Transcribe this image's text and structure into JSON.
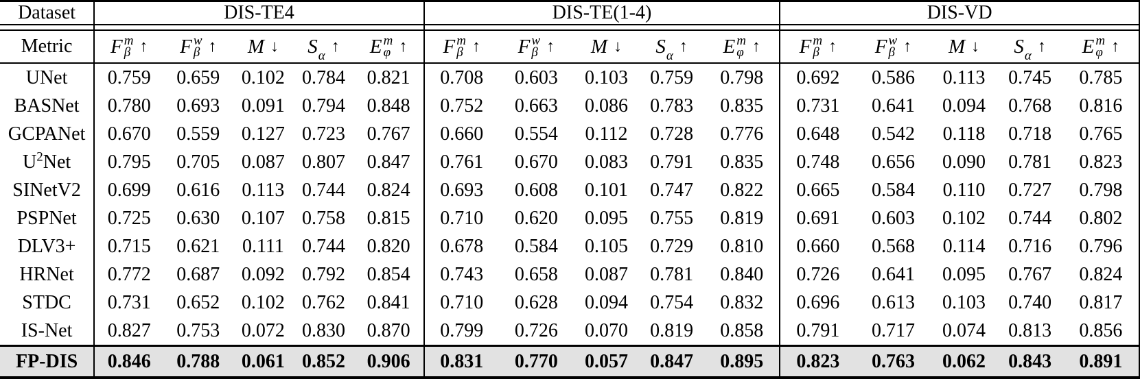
{
  "table": {
    "corner_header": "Dataset",
    "metric_header": "Metric",
    "highlight_color": "#e2e2e2",
    "text_color": "#000000",
    "sections": [
      {
        "label": "DIS-TE4",
        "key": "te4"
      },
      {
        "label": "DIS-TE(1-4)",
        "key": "te14"
      },
      {
        "label": "DIS-VD",
        "key": "vd"
      }
    ],
    "metrics": [
      {
        "base": "F",
        "sup": "m",
        "sub": "β",
        "arrow": "↑"
      },
      {
        "base": "F",
        "sup": "w",
        "sub": "β",
        "arrow": "↑"
      },
      {
        "base": "M",
        "sup": "",
        "sub": "",
        "arrow": "↓"
      },
      {
        "base": "S",
        "sup": "",
        "sub": "α",
        "arrow": "↑"
      },
      {
        "base": "E",
        "sup": "m",
        "sub": "φ",
        "arrow": "↑"
      }
    ],
    "rows": [
      {
        "method_pre": "UNet",
        "method_sup": "",
        "method_post": "",
        "highlight": false,
        "te4": [
          "0.759",
          "0.659",
          "0.102",
          "0.784",
          "0.821"
        ],
        "te14": [
          "0.708",
          "0.603",
          "0.103",
          "0.759",
          "0.798"
        ],
        "vd": [
          "0.692",
          "0.586",
          "0.113",
          "0.745",
          "0.785"
        ]
      },
      {
        "method_pre": "BASNet",
        "method_sup": "",
        "method_post": "",
        "highlight": false,
        "te4": [
          "0.780",
          "0.693",
          "0.091",
          "0.794",
          "0.848"
        ],
        "te14": [
          "0.752",
          "0.663",
          "0.086",
          "0.783",
          "0.835"
        ],
        "vd": [
          "0.731",
          "0.641",
          "0.094",
          "0.768",
          "0.816"
        ]
      },
      {
        "method_pre": "GCPANet",
        "method_sup": "",
        "method_post": "",
        "highlight": false,
        "te4": [
          "0.670",
          "0.559",
          "0.127",
          "0.723",
          "0.767"
        ],
        "te14": [
          "0.660",
          "0.554",
          "0.112",
          "0.728",
          "0.776"
        ],
        "vd": [
          "0.648",
          "0.542",
          "0.118",
          "0.718",
          "0.765"
        ]
      },
      {
        "method_pre": "U",
        "method_sup": "2",
        "method_post": "Net",
        "highlight": false,
        "te4": [
          "0.795",
          "0.705",
          "0.087",
          "0.807",
          "0.847"
        ],
        "te14": [
          "0.761",
          "0.670",
          "0.083",
          "0.791",
          "0.835"
        ],
        "vd": [
          "0.748",
          "0.656",
          "0.090",
          "0.781",
          "0.823"
        ]
      },
      {
        "method_pre": "SINetV2",
        "method_sup": "",
        "method_post": "",
        "highlight": false,
        "te4": [
          "0.699",
          "0.616",
          "0.113",
          "0.744",
          "0.824"
        ],
        "te14": [
          "0.693",
          "0.608",
          "0.101",
          "0.747",
          "0.822"
        ],
        "vd": [
          "0.665",
          "0.584",
          "0.110",
          "0.727",
          "0.798"
        ]
      },
      {
        "method_pre": "PSPNet",
        "method_sup": "",
        "method_post": "",
        "highlight": false,
        "te4": [
          "0.725",
          "0.630",
          "0.107",
          "0.758",
          "0.815"
        ],
        "te14": [
          "0.710",
          "0.620",
          "0.095",
          "0.755",
          "0.819"
        ],
        "vd": [
          "0.691",
          "0.603",
          "0.102",
          "0.744",
          "0.802"
        ]
      },
      {
        "method_pre": "DLV3+",
        "method_sup": "",
        "method_post": "",
        "highlight": false,
        "te4": [
          "0.715",
          "0.621",
          "0.111",
          "0.744",
          "0.820"
        ],
        "te14": [
          "0.678",
          "0.584",
          "0.105",
          "0.729",
          "0.810"
        ],
        "vd": [
          "0.660",
          "0.568",
          "0.114",
          "0.716",
          "0.796"
        ]
      },
      {
        "method_pre": "HRNet",
        "method_sup": "",
        "method_post": "",
        "highlight": false,
        "te4": [
          "0.772",
          "0.687",
          "0.092",
          "0.792",
          "0.854"
        ],
        "te14": [
          "0.743",
          "0.658",
          "0.087",
          "0.781",
          "0.840"
        ],
        "vd": [
          "0.726",
          "0.641",
          "0.095",
          "0.767",
          "0.824"
        ]
      },
      {
        "method_pre": "STDC",
        "method_sup": "",
        "method_post": "",
        "highlight": false,
        "te4": [
          "0.731",
          "0.652",
          "0.102",
          "0.762",
          "0.841"
        ],
        "te14": [
          "0.710",
          "0.628",
          "0.094",
          "0.754",
          "0.832"
        ],
        "vd": [
          "0.696",
          "0.613",
          "0.103",
          "0.740",
          "0.817"
        ]
      },
      {
        "method_pre": "IS-Net",
        "method_sup": "",
        "method_post": "",
        "highlight": false,
        "te4": [
          "0.827",
          "0.753",
          "0.072",
          "0.830",
          "0.870"
        ],
        "te14": [
          "0.799",
          "0.726",
          "0.070",
          "0.819",
          "0.858"
        ],
        "vd": [
          "0.791",
          "0.717",
          "0.074",
          "0.813",
          "0.856"
        ]
      },
      {
        "method_pre": "FP-DIS",
        "method_sup": "",
        "method_post": "",
        "highlight": true,
        "te4": [
          "0.846",
          "0.788",
          "0.061",
          "0.852",
          "0.906"
        ],
        "te14": [
          "0.831",
          "0.770",
          "0.057",
          "0.847",
          "0.895"
        ],
        "vd": [
          "0.823",
          "0.763",
          "0.062",
          "0.843",
          "0.891"
        ]
      }
    ]
  }
}
